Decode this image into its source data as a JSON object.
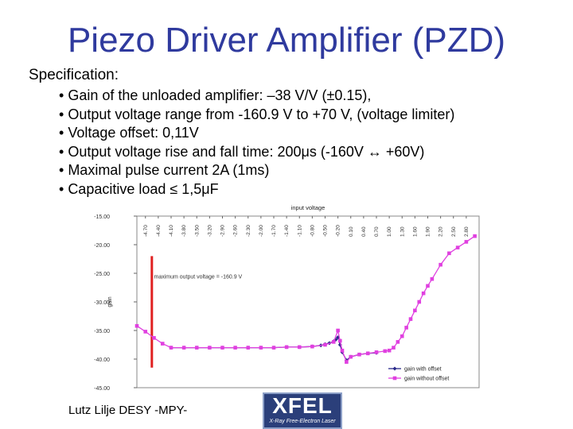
{
  "slide": {
    "title": "Piezo Driver Amplifier (PZD)",
    "spec_heading": "Specification:",
    "bullets": [
      "Gain of the unloaded amplifier: –38 V/V (±0.15),",
      "Output voltage range from -160.9 V to +70 V, (voltage limiter)",
      "Voltage offset: 0,11V",
      "Output voltage rise and fall time: 200μs (-160V ↔ +60V)",
      "Maximal pulse current 2A (1ms)",
      "Capacitive load ≤ 1,5μF"
    ],
    "footer": "Lutz Lilje   DESY -MPY-",
    "logo": {
      "text": "XFEL",
      "subtext": "X-Ray Free-Electron Laser"
    }
  },
  "chart_data": {
    "type": "line",
    "title": "input voltage",
    "xlabel": "",
    "ylabel": "gain",
    "x_ticks": [
      "-4.70",
      "-4.40",
      "-4.10",
      "-3.80",
      "-3.50",
      "-3.20",
      "-2.90",
      "-2.60",
      "-2.30",
      "-2.00",
      "-1.70",
      "-1.40",
      "-1.10",
      "-0.80",
      "-0.50",
      "-0.20",
      "0.10",
      "0.40",
      "0.70",
      "1.00",
      "1.30",
      "1.60",
      "1.90",
      "2.20",
      "2.50",
      "2.80"
    ],
    "xlim": [
      -4.9,
      3.1
    ],
    "y_ticks": [
      "-15.00",
      "-20.00",
      "-25.00",
      "-30.00",
      "-35.00",
      "-40.00",
      "-45.00"
    ],
    "ylim": [
      -45,
      -15
    ],
    "annotation": "maximum output voltage = -160.9 V",
    "marker_line": {
      "x": -4.55,
      "y_range": [
        -41.5,
        -22.0
      ],
      "color": "#e02020"
    },
    "legend_position": "bottom-right",
    "series": [
      {
        "name": "gain with offset",
        "color": "#2a2a8a",
        "marker": "diamond",
        "x": [
          -4.1,
          -3.8,
          -3.5,
          -3.2,
          -2.9,
          -2.6,
          -2.3,
          -2.0,
          -1.7,
          -1.4,
          -1.1,
          -0.8,
          -0.6,
          -0.5,
          -0.4,
          -0.3,
          -0.25,
          -0.2,
          -0.15,
          -0.1,
          0.0,
          0.1,
          0.3,
          0.5,
          0.7
        ],
        "y": [
          -38.0,
          -38.0,
          -38.0,
          -38.0,
          -38.0,
          -38.0,
          -38.0,
          -38.0,
          -38.0,
          -37.9,
          -37.9,
          -37.8,
          -37.6,
          -37.4,
          -37.2,
          -36.9,
          -36.6,
          -36.2,
          -37.5,
          -38.8,
          -40.2,
          -39.6,
          -39.2,
          -39.0,
          -38.9
        ]
      },
      {
        "name": "gain without offset",
        "color": "#e040e0",
        "marker": "square",
        "x": [
          -4.9,
          -4.7,
          -4.5,
          -4.3,
          -4.1,
          -3.8,
          -3.5,
          -3.2,
          -2.9,
          -2.6,
          -2.3,
          -2.0,
          -1.7,
          -1.4,
          -1.1,
          -0.8,
          -0.5,
          -0.3,
          -0.2,
          -0.15,
          -0.1,
          0.0,
          0.1,
          0.3,
          0.5,
          0.7,
          0.9,
          1.0,
          1.1,
          1.2,
          1.3,
          1.4,
          1.5,
          1.6,
          1.7,
          1.8,
          1.9,
          2.0,
          2.2,
          2.4,
          2.6,
          2.8,
          3.0
        ],
        "y": [
          -34.2,
          -35.2,
          -36.3,
          -37.3,
          -38.0,
          -38.0,
          -38.0,
          -38.0,
          -38.0,
          -38.0,
          -38.0,
          -38.0,
          -38.0,
          -37.9,
          -37.9,
          -37.8,
          -37.5,
          -37.0,
          -35.0,
          -36.8,
          -38.5,
          -40.5,
          -39.6,
          -39.2,
          -39.0,
          -38.8,
          -38.6,
          -38.5,
          -38.0,
          -37.0,
          -36.0,
          -34.5,
          -33.0,
          -31.5,
          -30.0,
          -28.5,
          -27.2,
          -26.0,
          -23.5,
          -21.5,
          -20.5,
          -19.5,
          -18.5
        ]
      }
    ]
  }
}
